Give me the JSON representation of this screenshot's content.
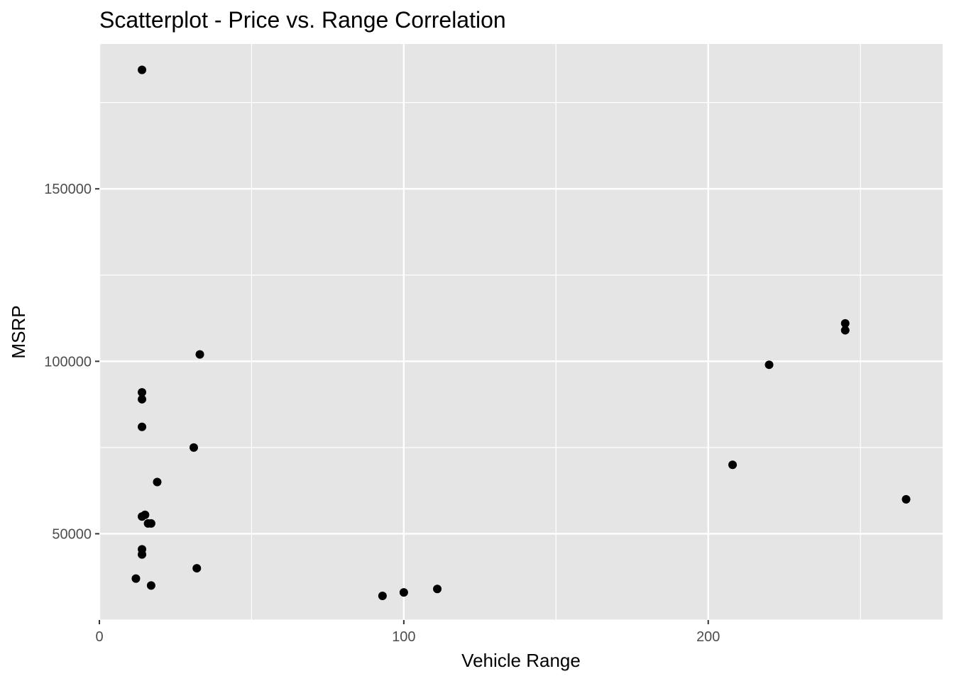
{
  "chart_data": {
    "type": "scatter",
    "title": "Scatterplot - Price vs. Range Correlation",
    "xlabel": "Vehicle Range",
    "ylabel": "MSRP",
    "xlim": [
      0,
      277
    ],
    "ylim": [
      25000,
      192000
    ],
    "x_ticks": [
      0,
      100,
      200
    ],
    "x_tick_labels": [
      "0",
      "100",
      "200"
    ],
    "y_ticks": [
      50000,
      100000,
      150000
    ],
    "y_tick_labels": [
      "50000",
      "100000",
      "150000"
    ],
    "grid": true,
    "point_color": "#000000",
    "panel_background": "#e5e5e5",
    "points": [
      {
        "x": 14,
        "y": 184500
      },
      {
        "x": 33,
        "y": 102000
      },
      {
        "x": 14,
        "y": 91000
      },
      {
        "x": 14,
        "y": 89000
      },
      {
        "x": 14,
        "y": 81000
      },
      {
        "x": 31,
        "y": 75000
      },
      {
        "x": 19,
        "y": 65000
      },
      {
        "x": 14,
        "y": 55000
      },
      {
        "x": 15,
        "y": 55500
      },
      {
        "x": 16,
        "y": 53000
      },
      {
        "x": 17,
        "y": 53000
      },
      {
        "x": 14,
        "y": 45500
      },
      {
        "x": 14,
        "y": 44000
      },
      {
        "x": 12,
        "y": 37000
      },
      {
        "x": 17,
        "y": 35000
      },
      {
        "x": 32,
        "y": 40000
      },
      {
        "x": 93,
        "y": 32000
      },
      {
        "x": 100,
        "y": 33000
      },
      {
        "x": 111,
        "y": 34000
      },
      {
        "x": 208,
        "y": 70000
      },
      {
        "x": 220,
        "y": 99000
      },
      {
        "x": 245,
        "y": 111000
      },
      {
        "x": 245,
        "y": 109000
      },
      {
        "x": 265,
        "y": 60000
      }
    ]
  }
}
